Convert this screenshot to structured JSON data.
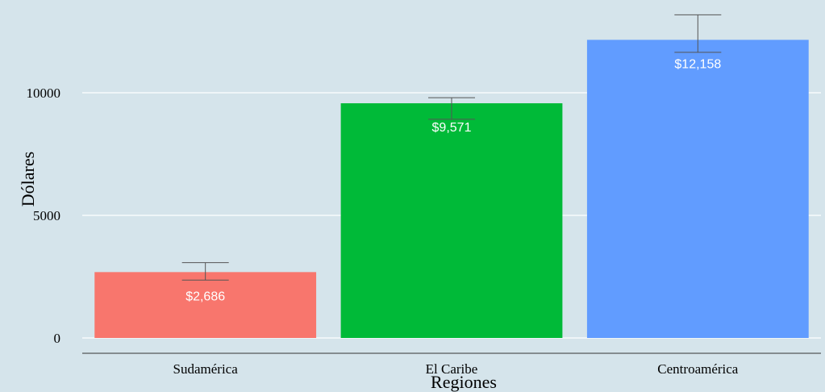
{
  "chart_data": {
    "type": "bar",
    "categories": [
      "Sudamérica",
      "El Caribe",
      "Centroamérica"
    ],
    "values": [
      2686,
      9571,
      12158
    ],
    "error_bars": [
      {
        "low": 2360,
        "high": 3070
      },
      {
        "low": 8920,
        "high": 9800
      },
      {
        "low": 11650,
        "high": 13180
      }
    ],
    "value_labels": [
      "$2,686",
      "$9,571",
      "$12,158"
    ],
    "bar_colors": [
      "#F8766D",
      "#00BA38",
      "#619CFF"
    ],
    "xlabel": "Regiones",
    "ylabel": "Dólares",
    "yticks": [
      0,
      5000,
      10000
    ],
    "ytick_labels": [
      "0",
      "5000",
      "10000"
    ],
    "ylim": [
      -650,
      13500
    ],
    "grid": "horizontal",
    "background": "#D5E4EB",
    "gridline_color": "#FFFFFF",
    "error_bar_color": "#555555"
  }
}
